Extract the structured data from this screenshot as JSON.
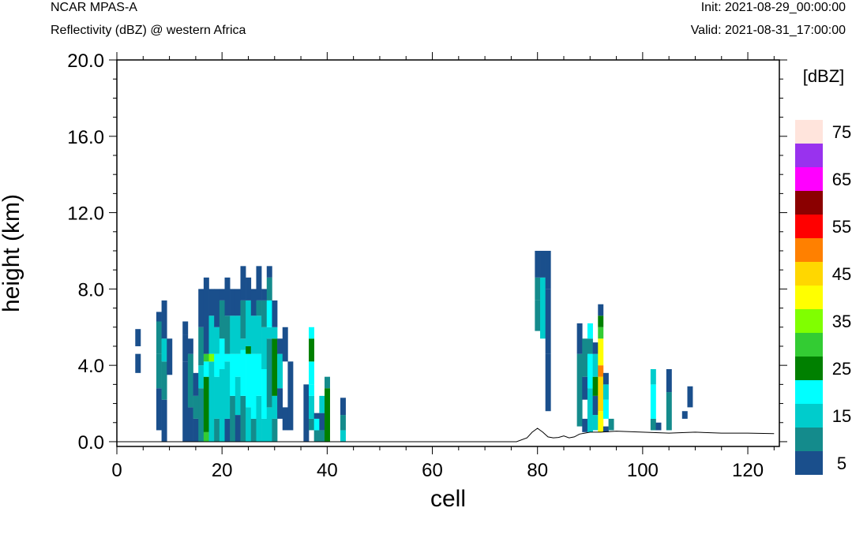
{
  "header": {
    "model": "NCAR MPAS-A",
    "field": "Reflectivity (dBZ) @ western Africa",
    "init": "Init: 2021-08-29_00:00:00",
    "valid": "Valid: 2021-08-31_17:00:00"
  },
  "chart_data": {
    "type": "heatmap",
    "title": "Reflectivity (dBZ) @ western Africa",
    "xlabel": "cell",
    "ylabel": "height (km)",
    "xlim": [
      0,
      126
    ],
    "ylim": [
      -0.25,
      20.0
    ],
    "xticks": [
      0,
      20,
      40,
      60,
      80,
      100,
      120
    ],
    "xtick_labels": [
      "0",
      "20",
      "40",
      "60",
      "80",
      "100",
      "120"
    ],
    "yticks": [
      0,
      4,
      8,
      12,
      16,
      20
    ],
    "ytick_labels": [
      "0.0",
      "4.0",
      "8.0",
      "12.0",
      "16.0",
      "20.0"
    ],
    "colorbar": {
      "title": "[dBZ]",
      "levels": [
        5,
        10,
        15,
        20,
        25,
        30,
        35,
        40,
        45,
        50,
        55,
        60,
        65,
        70,
        75
      ],
      "labels": [
        "5",
        "15",
        "25",
        "35",
        "45",
        "55",
        "65",
        "75"
      ],
      "colors": [
        "#1a4f8c",
        "#148b8c",
        "#00cccc",
        "#00ffff",
        "#008000",
        "#33cc33",
        "#80ff00",
        "#ffff00",
        "#ffd700",
        "#ff8000",
        "#ff0000",
        "#8b0000",
        "#ff00ff",
        "#9932ee",
        "#ffe4dc"
      ]
    },
    "columns": [
      {
        "x": 4,
        "segments": [
          [
            3.6,
            4.6,
            5
          ],
          [
            5.0,
            5.9,
            5
          ]
        ]
      },
      {
        "x": 8,
        "segments": [
          [
            0.6,
            2.8,
            5
          ],
          [
            2.8,
            4.6,
            10
          ],
          [
            4.6,
            6.3,
            10
          ],
          [
            6.3,
            6.8,
            5
          ]
        ]
      },
      {
        "x": 9,
        "segments": [
          [
            0,
            2.2,
            5
          ],
          [
            2.2,
            4.2,
            10
          ],
          [
            4.2,
            5.4,
            15
          ],
          [
            5.4,
            7.4,
            5
          ]
        ]
      },
      {
        "x": 10,
        "segments": [
          [
            3.5,
            5.4,
            5
          ]
        ]
      },
      {
        "x": 13,
        "segments": [
          [
            0,
            4.2,
            5
          ],
          [
            4.2,
            5.6,
            5
          ],
          [
            5.6,
            6.3,
            5
          ]
        ]
      },
      {
        "x": 14,
        "segments": [
          [
            0,
            1.8,
            5
          ],
          [
            1.8,
            4.6,
            10
          ],
          [
            4.6,
            5.4,
            5
          ]
        ]
      },
      {
        "x": 15,
        "segments": [
          [
            0,
            1.2,
            5
          ],
          [
            1.2,
            2.4,
            10
          ],
          [
            2.4,
            3.6,
            5
          ]
        ]
      },
      {
        "x": 16,
        "segments": [
          [
            0,
            2.8,
            10
          ],
          [
            2.8,
            4.0,
            15
          ],
          [
            4.0,
            6.0,
            10
          ],
          [
            6.0,
            8.0,
            5
          ]
        ]
      },
      {
        "x": 17,
        "segments": [
          [
            0,
            0.5,
            30
          ],
          [
            0.5,
            3.4,
            25
          ],
          [
            3.4,
            4.2,
            20
          ],
          [
            4.2,
            4.6,
            30
          ],
          [
            4.6,
            8.6,
            5
          ]
        ]
      },
      {
        "x": 18,
        "segments": [
          [
            0,
            4.2,
            15
          ],
          [
            4.2,
            4.6,
            35
          ],
          [
            4.6,
            6.6,
            15
          ],
          [
            6.6,
            8.0,
            5
          ]
        ]
      },
      {
        "x": 19,
        "segments": [
          [
            0,
            1.2,
            10
          ],
          [
            1.2,
            3.4,
            15
          ],
          [
            3.4,
            4.6,
            20
          ],
          [
            4.6,
            6.0,
            15
          ],
          [
            6.0,
            8.0,
            5
          ]
        ]
      },
      {
        "x": 20,
        "segments": [
          [
            0,
            3.8,
            15
          ],
          [
            3.8,
            5.4,
            20
          ],
          [
            5.4,
            7.4,
            10
          ],
          [
            7.4,
            8.0,
            5
          ]
        ]
      },
      {
        "x": 21,
        "segments": [
          [
            0,
            1.2,
            5
          ],
          [
            1.2,
            4.2,
            15
          ],
          [
            4.2,
            4.6,
            20
          ],
          [
            4.6,
            6.6,
            10
          ],
          [
            6.6,
            8.6,
            5
          ]
        ]
      },
      {
        "x": 22,
        "segments": [
          [
            0,
            2.4,
            10
          ],
          [
            2.4,
            4.6,
            20
          ],
          [
            4.6,
            6.6,
            15
          ],
          [
            6.6,
            8.0,
            5
          ]
        ]
      },
      {
        "x": 23,
        "segments": [
          [
            0,
            1.4,
            5
          ],
          [
            1.4,
            3.4,
            15
          ],
          [
            3.4,
            4.6,
            20
          ],
          [
            4.6,
            6.6,
            15
          ],
          [
            6.6,
            8.0,
            5
          ]
        ]
      },
      {
        "x": 24,
        "segments": [
          [
            0,
            2.4,
            10
          ],
          [
            2.4,
            4.8,
            20
          ],
          [
            4.8,
            5.4,
            15
          ],
          [
            5.4,
            7.4,
            10
          ],
          [
            7.4,
            9.2,
            5
          ]
        ]
      },
      {
        "x": 25,
        "segments": [
          [
            0,
            1.8,
            15
          ],
          [
            1.8,
            4.6,
            20
          ],
          [
            4.6,
            5.0,
            25
          ],
          [
            5.0,
            7.4,
            15
          ],
          [
            7.4,
            8.6,
            5
          ]
        ]
      },
      {
        "x": 26,
        "segments": [
          [
            0,
            1.2,
            10
          ],
          [
            1.2,
            4.6,
            20
          ],
          [
            4.6,
            6.6,
            15
          ],
          [
            6.6,
            8.0,
            5
          ]
        ]
      },
      {
        "x": 27,
        "segments": [
          [
            0,
            2.4,
            15
          ],
          [
            2.4,
            4.6,
            20
          ],
          [
            4.6,
            6.6,
            15
          ],
          [
            6.6,
            7.4,
            10
          ],
          [
            7.4,
            9.2,
            5
          ]
        ]
      },
      {
        "x": 28,
        "segments": [
          [
            0,
            1.2,
            15
          ],
          [
            1.2,
            3.8,
            20
          ],
          [
            3.8,
            6.0,
            15
          ],
          [
            6.0,
            7.4,
            10
          ],
          [
            7.4,
            8.0,
            5
          ]
        ]
      },
      {
        "x": 29,
        "segments": [
          [
            0,
            1.8,
            15
          ],
          [
            1.8,
            5.4,
            10
          ],
          [
            5.4,
            6.0,
            15
          ],
          [
            6.0,
            7.4,
            20
          ],
          [
            7.4,
            8.6,
            10
          ],
          [
            8.6,
            9.2,
            5
          ]
        ]
      },
      {
        "x": 30,
        "segments": [
          [
            0,
            1.2,
            10
          ],
          [
            1.2,
            2.4,
            15
          ],
          [
            2.4,
            5.4,
            25
          ],
          [
            5.4,
            6.0,
            15
          ],
          [
            6.0,
            7.4,
            5
          ]
        ]
      },
      {
        "x": 31,
        "segments": [
          [
            1.2,
            2.8,
            5
          ],
          [
            2.8,
            4.6,
            15
          ],
          [
            4.6,
            5.4,
            5
          ]
        ]
      },
      {
        "x": 32,
        "segments": [
          [
            0.6,
            1.8,
            5
          ],
          [
            4.2,
            6.0,
            5
          ]
        ]
      },
      {
        "x": 33,
        "segments": [
          [
            0.6,
            4.2,
            5
          ]
        ]
      },
      {
        "x": 36,
        "segments": [
          [
            0,
            3.0,
            5
          ]
        ]
      },
      {
        "x": 37,
        "segments": [
          [
            0.6,
            1.2,
            10
          ],
          [
            1.2,
            2.4,
            15
          ],
          [
            2.4,
            3.0,
            20
          ],
          [
            3.0,
            4.2,
            20
          ],
          [
            4.2,
            5.4,
            25
          ],
          [
            5.4,
            6.0,
            20
          ]
        ]
      },
      {
        "x": 38,
        "segments": [
          [
            0,
            0.6,
            10
          ],
          [
            0.6,
            1.2,
            20
          ],
          [
            1.2,
            1.5,
            5
          ]
        ]
      },
      {
        "x": 39,
        "segments": [
          [
            0,
            0.6,
            10
          ],
          [
            0.6,
            1.5,
            5
          ],
          [
            1.5,
            2.4,
            15
          ]
        ]
      },
      {
        "x": 40,
        "segments": [
          [
            0,
            2.8,
            25
          ],
          [
            2.8,
            3.4,
            10
          ]
        ]
      },
      {
        "x": 43,
        "segments": [
          [
            0,
            0.6,
            15
          ],
          [
            0.6,
            1.4,
            10
          ],
          [
            1.4,
            2.3,
            5
          ]
        ]
      },
      {
        "x": 80,
        "segments": [
          [
            5.8,
            7.4,
            10
          ],
          [
            7.4,
            8.6,
            10
          ],
          [
            8.6,
            10.0,
            5
          ]
        ]
      },
      {
        "x": 81,
        "segments": [
          [
            5.4,
            8.6,
            15
          ],
          [
            8.6,
            10.0,
            5
          ]
        ]
      },
      {
        "x": 82,
        "segments": [
          [
            1.6,
            4.6,
            5
          ],
          [
            4.6,
            8.0,
            5
          ],
          [
            8.0,
            10.0,
            5
          ]
        ]
      },
      {
        "x": 88,
        "segments": [
          [
            0.8,
            4.6,
            10
          ],
          [
            4.6,
            6.2,
            5
          ]
        ]
      },
      {
        "x": 89,
        "segments": [
          [
            0.5,
            1.2,
            5
          ],
          [
            2.2,
            3.4,
            5
          ],
          [
            3.4,
            5.4,
            10
          ]
        ]
      },
      {
        "x": 90,
        "segments": [
          [
            0.5,
            2.8,
            15
          ],
          [
            2.8,
            4.6,
            20
          ],
          [
            4.6,
            5.4,
            10
          ],
          [
            5.4,
            6.2,
            20
          ]
        ]
      },
      {
        "x": 91,
        "segments": [
          [
            0.6,
            1.4,
            15
          ],
          [
            1.4,
            2.4,
            5
          ],
          [
            2.4,
            3.4,
            25
          ],
          [
            3.4,
            4.6,
            15
          ],
          [
            4.6,
            5.2,
            5
          ]
        ]
      },
      {
        "x": 92,
        "segments": [
          [
            0.5,
            1.6,
            40
          ],
          [
            1.6,
            3.4,
            45
          ],
          [
            3.4,
            4.0,
            50
          ],
          [
            4.0,
            5.4,
            40
          ],
          [
            5.4,
            6.0,
            30
          ],
          [
            6.0,
            6.6,
            25
          ],
          [
            6.6,
            7.2,
            5
          ]
        ]
      },
      {
        "x": 93,
        "segments": [
          [
            0.5,
            0.8,
            5
          ],
          [
            1.2,
            2.2,
            20
          ],
          [
            2.2,
            3.0,
            15
          ],
          [
            3.0,
            3.6,
            5
          ]
        ]
      },
      {
        "x": 94,
        "segments": [
          [
            0.6,
            1.2,
            10
          ]
        ]
      },
      {
        "x": 102,
        "segments": [
          [
            0.6,
            1.2,
            10
          ],
          [
            1.2,
            3.0,
            20
          ],
          [
            3.0,
            3.8,
            15
          ]
        ]
      },
      {
        "x": 103,
        "segments": [
          [
            0.6,
            1.0,
            5
          ]
        ]
      },
      {
        "x": 105,
        "segments": [
          [
            0.6,
            2.6,
            10
          ],
          [
            2.6,
            3.8,
            5
          ]
        ]
      },
      {
        "x": 108,
        "segments": [
          [
            1.2,
            1.6,
            5
          ]
        ]
      },
      {
        "x": 109,
        "segments": [
          [
            1.8,
            2.9,
            5
          ]
        ]
      }
    ],
    "terrain": [
      [
        0,
        0
      ],
      [
        76,
        0
      ],
      [
        78,
        0.2
      ],
      [
        79,
        0.5
      ],
      [
        80,
        0.7
      ],
      [
        81,
        0.5
      ],
      [
        82,
        0.25
      ],
      [
        83,
        0.2
      ],
      [
        84,
        0.22
      ],
      [
        85,
        0.3
      ],
      [
        86,
        0.2
      ],
      [
        87,
        0.25
      ],
      [
        88,
        0.4
      ],
      [
        89,
        0.45
      ],
      [
        90,
        0.5
      ],
      [
        92,
        0.5
      ],
      [
        95,
        0.55
      ],
      [
        100,
        0.5
      ],
      [
        105,
        0.45
      ],
      [
        110,
        0.5
      ],
      [
        115,
        0.45
      ],
      [
        120,
        0.45
      ],
      [
        125,
        0.42
      ]
    ]
  }
}
